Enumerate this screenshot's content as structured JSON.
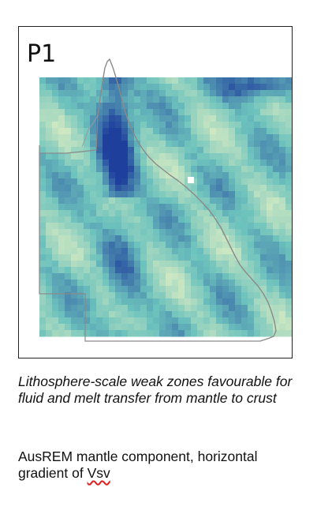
{
  "panel": {
    "label": "P1"
  },
  "caption": {
    "text": "Lithosphere-scale weak zones favourable for fluid and melt transfer from mantle to crust"
  },
  "subcaption": {
    "prefix": "AusREM mantle component, horizontal gradient of ",
    "highlight": "Vsv"
  },
  "colors": {
    "low": "#f4f6c4",
    "mid": "#6cc2bd",
    "high": "#1f3f9c",
    "outline": "#8a8a8a"
  }
}
